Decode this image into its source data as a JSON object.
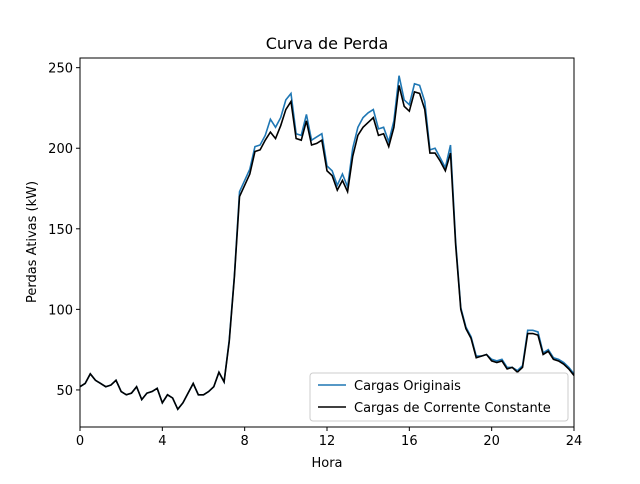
{
  "chart_data": {
    "type": "line",
    "title": "Curva de Perda",
    "xlabel": "Hora",
    "ylabel": "Perdas Ativas (kW)",
    "x": [
      0,
      0.25,
      0.5,
      0.75,
      1,
      1.25,
      1.5,
      1.75,
      2,
      2.25,
      2.5,
      2.75,
      3,
      3.25,
      3.5,
      3.75,
      4,
      4.25,
      4.5,
      4.75,
      5,
      5.25,
      5.5,
      5.75,
      6,
      6.25,
      6.5,
      6.75,
      7,
      7.25,
      7.5,
      7.75,
      8,
      8.25,
      8.5,
      8.75,
      9,
      9.25,
      9.5,
      9.75,
      10,
      10.25,
      10.5,
      10.75,
      11,
      11.25,
      11.5,
      11.75,
      12,
      12.25,
      12.5,
      12.75,
      13,
      13.25,
      13.5,
      13.75,
      14,
      14.25,
      14.5,
      14.75,
      15,
      15.25,
      15.5,
      15.75,
      16,
      16.25,
      16.5,
      16.75,
      17,
      17.25,
      17.5,
      17.75,
      18,
      18.25,
      18.5,
      18.75,
      19,
      19.25,
      19.5,
      19.75,
      20,
      20.25,
      20.5,
      20.75,
      21,
      21.25,
      21.5,
      21.75,
      22,
      22.25,
      22.5,
      22.75,
      23,
      23.25,
      23.5,
      23.75,
      24
    ],
    "series": [
      {
        "name": "Cargas Originais",
        "color": "#1f77b4",
        "values": [
          52,
          54,
          60,
          56,
          54,
          52,
          53,
          56,
          49,
          47,
          48,
          52,
          44,
          48,
          49,
          51,
          42,
          47,
          45,
          38,
          42,
          48,
          54,
          47,
          47,
          49,
          52,
          61,
          55,
          81,
          121,
          173,
          180,
          187,
          201,
          202,
          208,
          218,
          213,
          219,
          230,
          234,
          209,
          208,
          221,
          205,
          207,
          209,
          189,
          186,
          177,
          184,
          176,
          200,
          213,
          219,
          222,
          224,
          212,
          213,
          204,
          217,
          245,
          230,
          227,
          240,
          239,
          229,
          199,
          200,
          194,
          188,
          202,
          142,
          101,
          89,
          83,
          71,
          71,
          72,
          69,
          68,
          69,
          64,
          64,
          62,
          65,
          87,
          87,
          86,
          73,
          75,
          70,
          69,
          67,
          64,
          60
        ]
      },
      {
        "name": "Cargas de Corrente Constante",
        "color": "#000000",
        "values": [
          52,
          54,
          60,
          56,
          54,
          52,
          53,
          56,
          49,
          47,
          48,
          52,
          44,
          48,
          49,
          51,
          42,
          47,
          45,
          38,
          42,
          48,
          54,
          47,
          47,
          49,
          52,
          61,
          55,
          80,
          120,
          170,
          177,
          184,
          198,
          199,
          205,
          210,
          206,
          214,
          224,
          229,
          206,
          205,
          217,
          202,
          203,
          205,
          186,
          183,
          174,
          180,
          173,
          195,
          208,
          213,
          216,
          219,
          208,
          209,
          201,
          213,
          239,
          226,
          223,
          235,
          234,
          224,
          197,
          197,
          192,
          186,
          197,
          140,
          100,
          88,
          82,
          70,
          71,
          72,
          68,
          67,
          68,
          63,
          64,
          61,
          64,
          85,
          85,
          84,
          72,
          74,
          69,
          68,
          66,
          63,
          59
        ]
      }
    ],
    "xlim": [
      0,
      24
    ],
    "xticks": [
      0,
      4,
      8,
      12,
      16,
      20,
      24
    ],
    "ylim": [
      27,
      256
    ],
    "yticks": [
      50,
      100,
      150,
      200,
      250
    ],
    "legend": "lower right"
  }
}
